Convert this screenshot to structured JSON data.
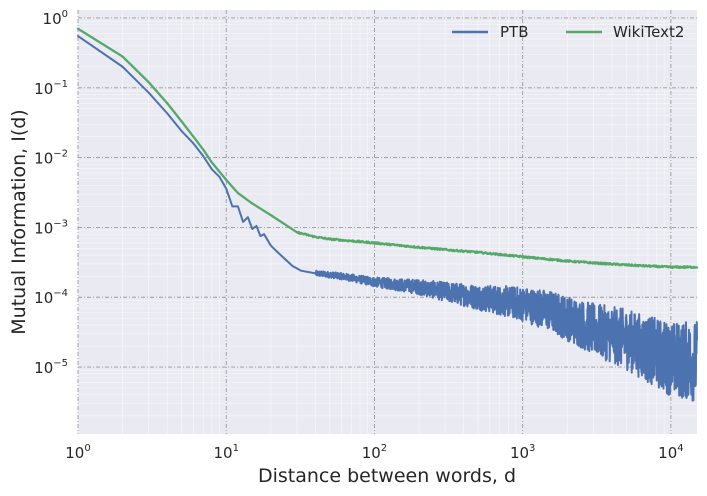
{
  "chart_data": {
    "type": "line",
    "title": "",
    "xlabel": "Distance between words, d",
    "ylabel": "Mutual Information, I(d)",
    "xscale": "log",
    "yscale": "log",
    "xlim": [
      1,
      15000
    ],
    "ylim": [
      1.1e-06,
      1.3
    ],
    "grid": true,
    "legend_position": "top-right",
    "x_ticks": [
      {
        "base": "10",
        "exp": "0",
        "value": 1
      },
      {
        "base": "10",
        "exp": "1",
        "value": 10
      },
      {
        "base": "10",
        "exp": "2",
        "value": 100
      },
      {
        "base": "10",
        "exp": "3",
        "value": 1000
      },
      {
        "base": "10",
        "exp": "4",
        "value": 10000
      }
    ],
    "y_ticks": [
      {
        "base": "10",
        "exp": "−5",
        "value": 1e-05
      },
      {
        "base": "10",
        "exp": "−4",
        "value": 0.0001
      },
      {
        "base": "10",
        "exp": "−3",
        "value": 0.001
      },
      {
        "base": "10",
        "exp": "−2",
        "value": 0.01
      },
      {
        "base": "10",
        "exp": "−1",
        "value": 0.1
      },
      {
        "base": "10",
        "exp": "0",
        "value": 1
      }
    ],
    "series": [
      {
        "name": "PTB",
        "color": "#4c72b0",
        "x": [
          1,
          2,
          3,
          4,
          5,
          6,
          7,
          8,
          9,
          10,
          11,
          12,
          13,
          14,
          15,
          16,
          17,
          18,
          20,
          22,
          25,
          28,
          32,
          40,
          50,
          60,
          80,
          100,
          150,
          200,
          300,
          500,
          700,
          1000,
          1500,
          2000,
          3000,
          5000,
          7000,
          10000,
          15000
        ],
        "y": [
          0.55,
          0.2,
          0.085,
          0.043,
          0.024,
          0.016,
          0.0105,
          0.0068,
          0.0053,
          0.0036,
          0.002,
          0.002,
          0.0012,
          0.0014,
          0.00095,
          0.00105,
          0.00075,
          0.0008,
          0.00055,
          0.00045,
          0.00035,
          0.00028,
          0.00024,
          0.00022,
          0.00021,
          0.0002,
          0.00018,
          0.000165,
          0.00015,
          0.00014,
          0.00012,
          0.0001,
          9e-05,
          8e-05,
          6.5e-05,
          5e-05,
          3.5e-05,
          2.5e-05,
          1.8e-05,
          1.3e-05,
          1.2e-05
        ],
        "noise_start": 40
      },
      {
        "name": "WikiText2",
        "color": "#55a868",
        "x": [
          1,
          2,
          3,
          4,
          5,
          6,
          7,
          8,
          9,
          10,
          12,
          15,
          20,
          25,
          30,
          40,
          50,
          70,
          100,
          150,
          200,
          300,
          500,
          700,
          1000,
          1500,
          2000,
          3000,
          5000,
          7000,
          10000,
          15000
        ],
        "y": [
          0.7,
          0.28,
          0.12,
          0.06,
          0.033,
          0.02,
          0.013,
          0.0085,
          0.0063,
          0.0048,
          0.0031,
          0.0022,
          0.0015,
          0.0011,
          0.00085,
          0.00073,
          0.00068,
          0.00064,
          0.0006,
          0.00055,
          0.00052,
          0.00048,
          0.00044,
          0.00041,
          0.00038,
          0.00035,
          0.00033,
          0.00031,
          0.00029,
          0.00028,
          0.00027,
          0.00027
        ],
        "noise_start": 30
      }
    ]
  }
}
